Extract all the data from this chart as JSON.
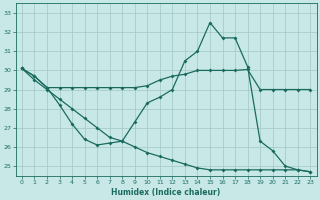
{
  "xlabel": "Humidex (Indice chaleur)",
  "xlim": [
    -0.5,
    23.5
  ],
  "ylim": [
    24.5,
    33.5
  ],
  "yticks": [
    25,
    26,
    27,
    28,
    29,
    30,
    31,
    32,
    33
  ],
  "xticks": [
    0,
    1,
    2,
    3,
    4,
    5,
    6,
    7,
    8,
    9,
    10,
    11,
    12,
    13,
    14,
    15,
    16,
    17,
    18,
    19,
    20,
    21,
    22,
    23
  ],
  "bg_color": "#c8e8e8",
  "line_color": "#1a6b5e",
  "grid_color": "#a0c8c0",
  "line1_y": [
    30.1,
    29.7,
    29.1,
    29.1,
    29.1,
    29.1,
    29.1,
    29.1,
    29.1,
    29.1,
    29.2,
    29.5,
    29.7,
    29.8,
    30.0,
    30.0,
    30.0,
    30.0,
    30.05,
    29.0,
    29.0,
    29.0,
    29.0,
    29.0
  ],
  "line2_y": [
    30.1,
    29.7,
    29.1,
    28.2,
    27.2,
    26.4,
    26.1,
    26.2,
    26.3,
    27.3,
    28.3,
    28.6,
    29.0,
    30.5,
    31.0,
    32.5,
    31.7,
    31.7,
    30.2,
    26.3,
    25.8,
    25.0,
    24.8,
    24.7
  ],
  "line3_y": [
    30.1,
    29.5,
    29.0,
    28.5,
    28.0,
    27.5,
    27.0,
    26.5,
    26.3,
    26.0,
    25.7,
    25.5,
    25.3,
    25.1,
    24.9,
    24.8,
    24.8,
    24.8,
    24.8,
    24.8,
    24.8,
    24.8,
    24.8,
    24.7
  ]
}
